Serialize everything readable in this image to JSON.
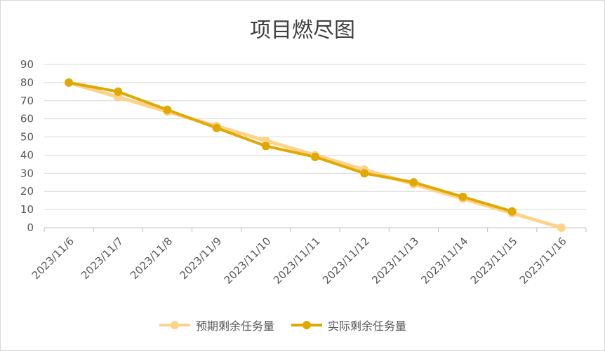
{
  "chart_data": {
    "type": "line",
    "title": "项目燃尽图",
    "xlabel": "",
    "ylabel": "",
    "categories": [
      "2023/11/6",
      "2023/11/7",
      "2023/11/8",
      "2023/11/9",
      "2023/11/10",
      "2023/11/11",
      "2023/11/12",
      "2023/11/13",
      "2023/11/14",
      "2023/11/15",
      "2023/11/16"
    ],
    "ylim": [
      0,
      90
    ],
    "yticks": [
      "0",
      "10",
      "20",
      "30",
      "40",
      "50",
      "60",
      "70",
      "80",
      "90"
    ],
    "grid": true,
    "legend_position": "bottom",
    "series": [
      {
        "name": "预期剩余任务量",
        "color": "#FFD28A",
        "values": [
          80,
          72,
          64,
          56,
          48,
          40,
          32,
          24,
          16,
          8,
          0
        ]
      },
      {
        "name": "实际剩余任务量",
        "color": "#E0A800",
        "values": [
          80,
          75,
          65,
          55,
          45,
          39,
          30,
          25,
          17,
          9,
          null
        ]
      }
    ]
  }
}
